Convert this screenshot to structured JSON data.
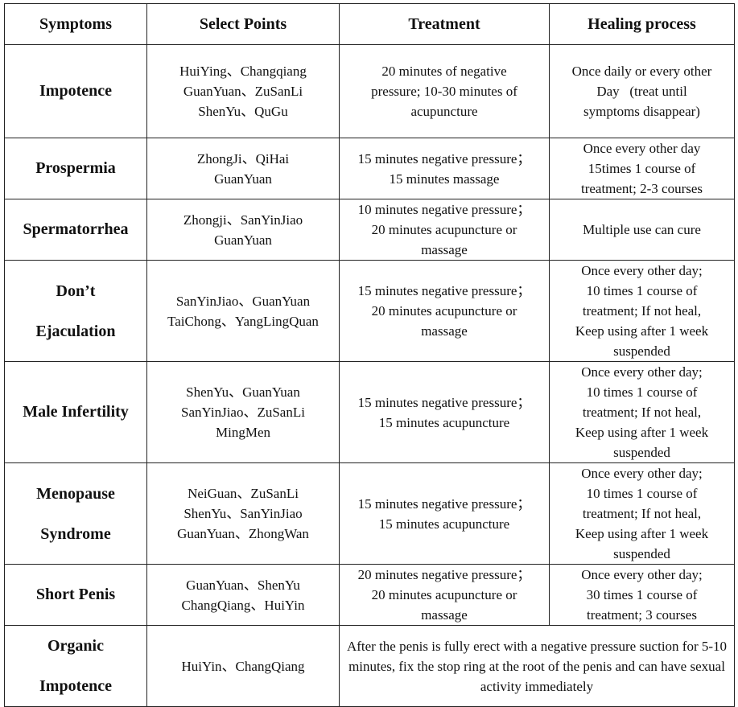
{
  "headers": [
    "Symptoms",
    "Select Points",
    "Treatment",
    "Healing process"
  ],
  "rows": [
    {
      "symptom": [
        "Impotence"
      ],
      "points": [
        "HuiYing、Changqiang",
        "GuanYuan、ZuSanLi",
        "ShenYu、QuGu"
      ],
      "treatment": [
        "20 minutes of negative",
        "pressure; 10-30 minutes of",
        "acupuncture"
      ],
      "healing": [
        "Once daily or every other",
        "Day   (treat until",
        "symptoms disappear)"
      ]
    },
    {
      "symptom": [
        "Prospermia"
      ],
      "points": [
        "ZhongJi、QiHai",
        "GuanYuan"
      ],
      "treatment": [
        "15 minutes negative pressure；",
        "15 minutes massage"
      ],
      "healing": [
        "Once every other day",
        "15times 1 course of",
        "treatment; 2-3 courses"
      ]
    },
    {
      "symptom": [
        "Spermatorrhea"
      ],
      "points": [
        "Zhongji、SanYinJiao",
        "GuanYuan"
      ],
      "treatment": [
        "10 minutes negative pressure；",
        "20 minutes acupuncture or",
        "massage"
      ],
      "healing": [
        "Multiple use can cure"
      ]
    },
    {
      "symptom": [
        "Don’t",
        "Ejaculation"
      ],
      "points": [
        "SanYinJiao、GuanYuan",
        "TaiChong、YangLingQuan"
      ],
      "treatment": [
        "15 minutes negative pressure；",
        "20 minutes acupuncture or",
        "massage"
      ],
      "healing": [
        "Once every other day;",
        "10 times 1 course of",
        "treatment; If not heal,",
        "Keep using after 1 week",
        "suspended"
      ]
    },
    {
      "symptom": [
        "Male Infertility"
      ],
      "points": [
        "ShenYu、GuanYuan",
        "SanYinJiao、ZuSanLi",
        "MingMen"
      ],
      "treatment": [
        "15 minutes negative pressure；",
        "15 minutes acupuncture"
      ],
      "healing": [
        "Once every other day;",
        "10 times 1 course of",
        "treatment; If not heal,",
        "Keep using after 1 week",
        "suspended"
      ]
    },
    {
      "symptom": [
        "Menopause",
        "Syndrome"
      ],
      "points": [
        "NeiGuan、ZuSanLi",
        "ShenYu、SanYinJiao",
        "GuanYuan、ZhongWan"
      ],
      "treatment": [
        "15 minutes negative pressure；",
        "15 minutes acupuncture"
      ],
      "healing": [
        "Once every other day;",
        "10 times 1 course of",
        "treatment; If not heal,",
        "Keep using after 1 week",
        "suspended"
      ]
    },
    {
      "symptom": [
        "Short Penis"
      ],
      "points": [
        "GuanYuan、ShenYu",
        "ChangQiang、HuiYin"
      ],
      "treatment": [
        "20 minutes negative pressure；",
        "20 minutes acupuncture or",
        "massage"
      ],
      "healing": [
        "Once every other day;",
        "30 times 1 course of",
        "treatment; 3 courses"
      ]
    }
  ],
  "last_row": {
    "symptom": [
      "Organic",
      "Impotence"
    ],
    "points": [
      "HuiYin、ChangQiang"
    ],
    "merged_text": "After the penis is fully erect with a negative pressure suction for 5-10 minutes, fix the stop ring at the root of the penis and can have sexual activity immediately"
  }
}
